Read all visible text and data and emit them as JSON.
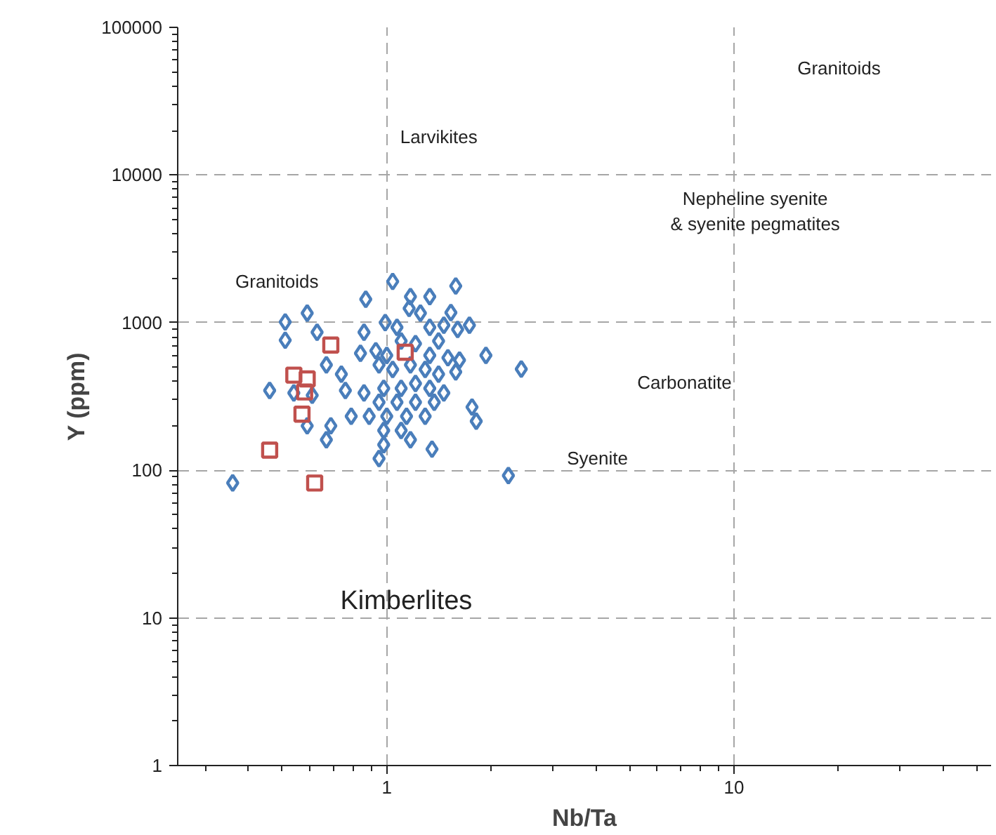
{
  "chart_data": {
    "type": "scatter",
    "xlabel": "Nb/Ta",
    "ylabel": "Y (ppm)",
    "log": "xy",
    "xlim": [
      0.25,
      55
    ],
    "ylim": [
      1,
      100000
    ],
    "xticks": [
      1,
      10
    ],
    "yticks": [
      1,
      10,
      100,
      1000,
      10000,
      100000
    ],
    "grid": true,
    "series": [
      {
        "color": "#4a7ebb",
        "marker": "diamond",
        "x": [
          1.04,
          1.58,
          0.87,
          1.17,
          1.33,
          0.59,
          0.51,
          0.99,
          1.16,
          1.25,
          1.53,
          1.73,
          0.51,
          0.63,
          0.86,
          1.07,
          1.33,
          1.46,
          1.6,
          1.1,
          1.21,
          1.41,
          0.84,
          0.93,
          1.0,
          1.33,
          1.5,
          1.62,
          1.93,
          0.67,
          0.74,
          0.95,
          1.04,
          1.17,
          1.29,
          1.41,
          1.58,
          0.46,
          0.54,
          0.76,
          0.86,
          0.98,
          1.1,
          1.21,
          1.33,
          1.46,
          0.61,
          0.95,
          1.07,
          1.21,
          1.37,
          1.76,
          0.59,
          0.69,
          0.79,
          0.89,
          1.0,
          1.14,
          1.29,
          1.81,
          0.67,
          0.98,
          1.1,
          0.98,
          1.17,
          1.35,
          0.95,
          0.36,
          2.24,
          2.44
        ],
        "values": [
          1900,
          1770,
          1440,
          1500,
          1500,
          1160,
          1010,
          1000,
          1250,
          1160,
          1170,
          960,
          760,
          860,
          860,
          930,
          930,
          960,
          900,
          750,
          720,
          750,
          620,
          645,
          600,
          600,
          578,
          557,
          600,
          518,
          448,
          518,
          482,
          518,
          482,
          448,
          464,
          347,
          334,
          347,
          334,
          359,
          359,
          387,
          359,
          334,
          322,
          289,
          289,
          289,
          289,
          268,
          200,
          200,
          232,
          232,
          232,
          232,
          232,
          215,
          161,
          186,
          186,
          149,
          161,
          139,
          120,
          82,
          92,
          485
        ]
      },
      {
        "color": "#c0504d",
        "marker": "square",
        "x": [
          0.69,
          1.13,
          0.54,
          0.59,
          0.58,
          0.57,
          0.46,
          0.62
        ],
        "values": [
          705,
          630,
          441,
          416,
          339,
          240,
          137,
          82
        ]
      }
    ],
    "annotations": [
      "Granitoids",
      "Larvikites",
      "Nepheline syenite\n& syenite pegmatites",
      "Granitoids",
      "Carbonatite",
      "Syenite",
      "Kimberlites"
    ]
  }
}
